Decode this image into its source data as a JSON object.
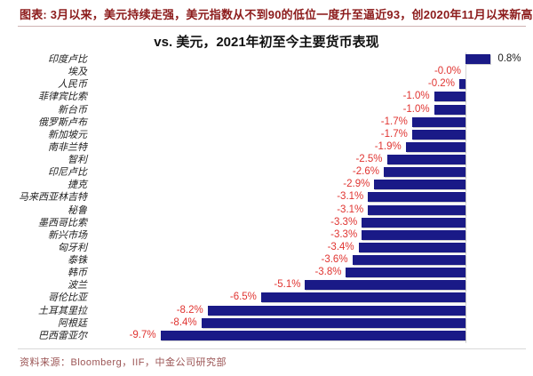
{
  "header": {
    "caption": "图表: 3月以来，美元持续走强，美元指数从不到90的低位一度升至逼近93，创2020年11月以来新高"
  },
  "chart_data": {
    "type": "bar",
    "orientation": "horizontal",
    "title": "vs. 美元，2021年初至今主要货币表现",
    "categories": [
      "印度卢比",
      "埃及",
      "人民币",
      "菲律宾比索",
      "新台币",
      "俄罗斯卢布",
      "新加坡元",
      "南非兰特",
      "智利",
      "印尼卢比",
      "捷克",
      "马来西亚林吉特",
      "秘鲁",
      "墨西哥比索",
      "新兴市场",
      "匈牙利",
      "泰铢",
      "韩币",
      "波兰",
      "哥伦比亚",
      "土耳其里拉",
      "阿根廷",
      "巴西雷亚尔"
    ],
    "values": [
      0.8,
      -0.0,
      -0.2,
      -1.0,
      -1.0,
      -1.7,
      -1.7,
      -1.9,
      -2.5,
      -2.6,
      -2.9,
      -3.1,
      -3.1,
      -3.3,
      -3.3,
      -3.4,
      -3.6,
      -3.8,
      -5.1,
      -6.5,
      -8.2,
      -8.4,
      -9.7
    ],
    "value_labels": [
      "0.8%",
      "-0.0%",
      "-0.2%",
      "-1.0%",
      "-1.0%",
      "-1.7%",
      "-1.7%",
      "-1.9%",
      "-2.5%",
      "-2.6%",
      "-2.9%",
      "-3.1%",
      "-3.1%",
      "-3.3%",
      "-3.3%",
      "-3.4%",
      "-3.6%",
      "-3.8%",
      "-5.1%",
      "-6.5%",
      "-8.2%",
      "-8.4%",
      "-9.7%"
    ],
    "xlim": [
      -10.5,
      1.2
    ],
    "grid": false,
    "legend": "none",
    "unit": "%",
    "bar_color": "#1a1a87",
    "negative_label_color": "#e03431",
    "positive_label_color": "#1a1a1a",
    "axis_line_color": "#d6d6d6"
  },
  "footer": {
    "source": "资料来源：Bloomberg，IIF，中金公司研究部"
  }
}
